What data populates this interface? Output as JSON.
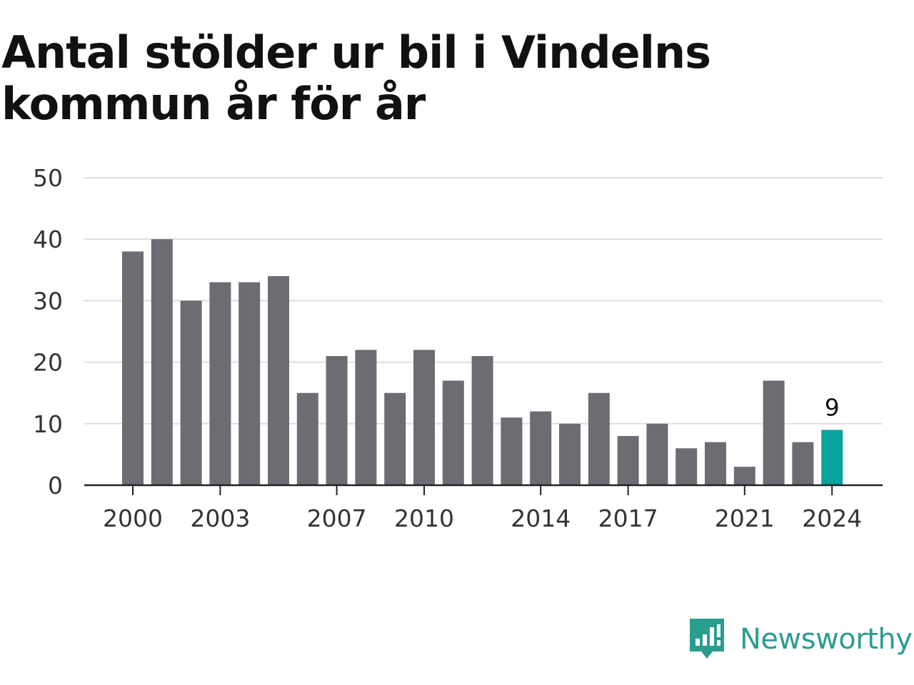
{
  "title": "Antal stölder ur bil i Vindelns kommun år för år",
  "brand": {
    "name": "Newsworthy",
    "icon": "newsworthy-logo-icon",
    "color": "#2a9d8f"
  },
  "chart_data": {
    "type": "bar",
    "title": "Antal stölder ur bil i Vindelns kommun år för år",
    "xlabel": "",
    "ylabel": "",
    "categories": [
      2000,
      2001,
      2002,
      2003,
      2004,
      2005,
      2006,
      2007,
      2008,
      2009,
      2010,
      2011,
      2012,
      2013,
      2014,
      2015,
      2016,
      2017,
      2018,
      2019,
      2020,
      2021,
      2022,
      2023,
      2024
    ],
    "values": [
      38,
      40,
      30,
      33,
      33,
      34,
      15,
      21,
      22,
      15,
      22,
      17,
      21,
      11,
      12,
      10,
      15,
      8,
      10,
      6,
      7,
      3,
      17,
      7,
      9
    ],
    "ylim": [
      0,
      50
    ],
    "yticks": [
      0,
      10,
      20,
      30,
      40,
      50
    ],
    "xticks": [
      2000,
      2003,
      2007,
      2010,
      2014,
      2017,
      2021,
      2024
    ],
    "grid": true,
    "bar_color": "#6d6c72",
    "highlight": {
      "category": 2024,
      "color": "#0aa39b",
      "label": "9"
    }
  }
}
